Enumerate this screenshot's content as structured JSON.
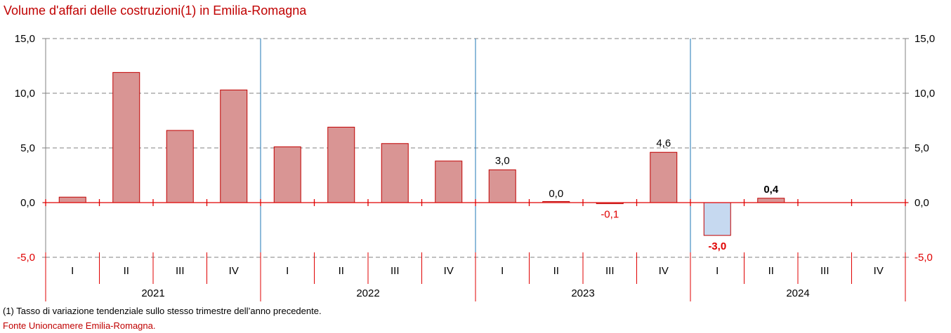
{
  "chart_data": {
    "type": "bar",
    "title": "Volume d'affari delle costruzioni(1) in Emilia-Romagna",
    "xlabel": "",
    "ylabel": "",
    "ylim": [
      -8.2,
      15
    ],
    "yticks": [
      15,
      10,
      5,
      0,
      -5
    ],
    "ytick_labels": [
      "15,0",
      "10,0",
      "5,0",
      "0,0",
      "-5,0"
    ],
    "grid": true,
    "legend": "none",
    "years": [
      "2021",
      "2022",
      "2023",
      "2024"
    ],
    "quarters": [
      "I",
      "II",
      "III",
      "IV"
    ],
    "categories": [
      "2021 I",
      "2021 II",
      "2021 III",
      "2021 IV",
      "2022 I",
      "2022 II",
      "2022 III",
      "2022 IV",
      "2023 I",
      "2023 II",
      "2023 III",
      "2023 IV",
      "2024 I",
      "2024 II",
      "2024 III",
      "2024 IV"
    ],
    "values": [
      0.5,
      11.9,
      6.6,
      10.3,
      5.1,
      6.9,
      5.4,
      3.8,
      3.0,
      0.0,
      -0.1,
      4.6,
      -3.0,
      0.4,
      null,
      null
    ],
    "data_labels": [
      {
        "index": 8,
        "text": "3,0",
        "style": "normal"
      },
      {
        "index": 9,
        "text": "0,0",
        "style": "normal"
      },
      {
        "index": 10,
        "text": "-0,1",
        "style": "negative"
      },
      {
        "index": 11,
        "text": "4,6",
        "style": "normal"
      },
      {
        "index": 12,
        "text": "-3,0",
        "style": "negative-bold"
      },
      {
        "index": 13,
        "text": "0,4",
        "style": "bold"
      }
    ]
  },
  "colors": {
    "bar_positive": "#d99594",
    "bar_negative_highlight": "#c6d9f0",
    "bar_border": "#c00000",
    "axis_red": "#e00000",
    "year_separator": "#1f77b4",
    "grid": "#808080",
    "text": "#000000",
    "title": "#c00000"
  },
  "footnote": "(1) Tasso di variazione tendenziale sullo stesso trimestre dell’anno precedente.",
  "source": "Fonte Unioncamere Emilia-Romagna."
}
